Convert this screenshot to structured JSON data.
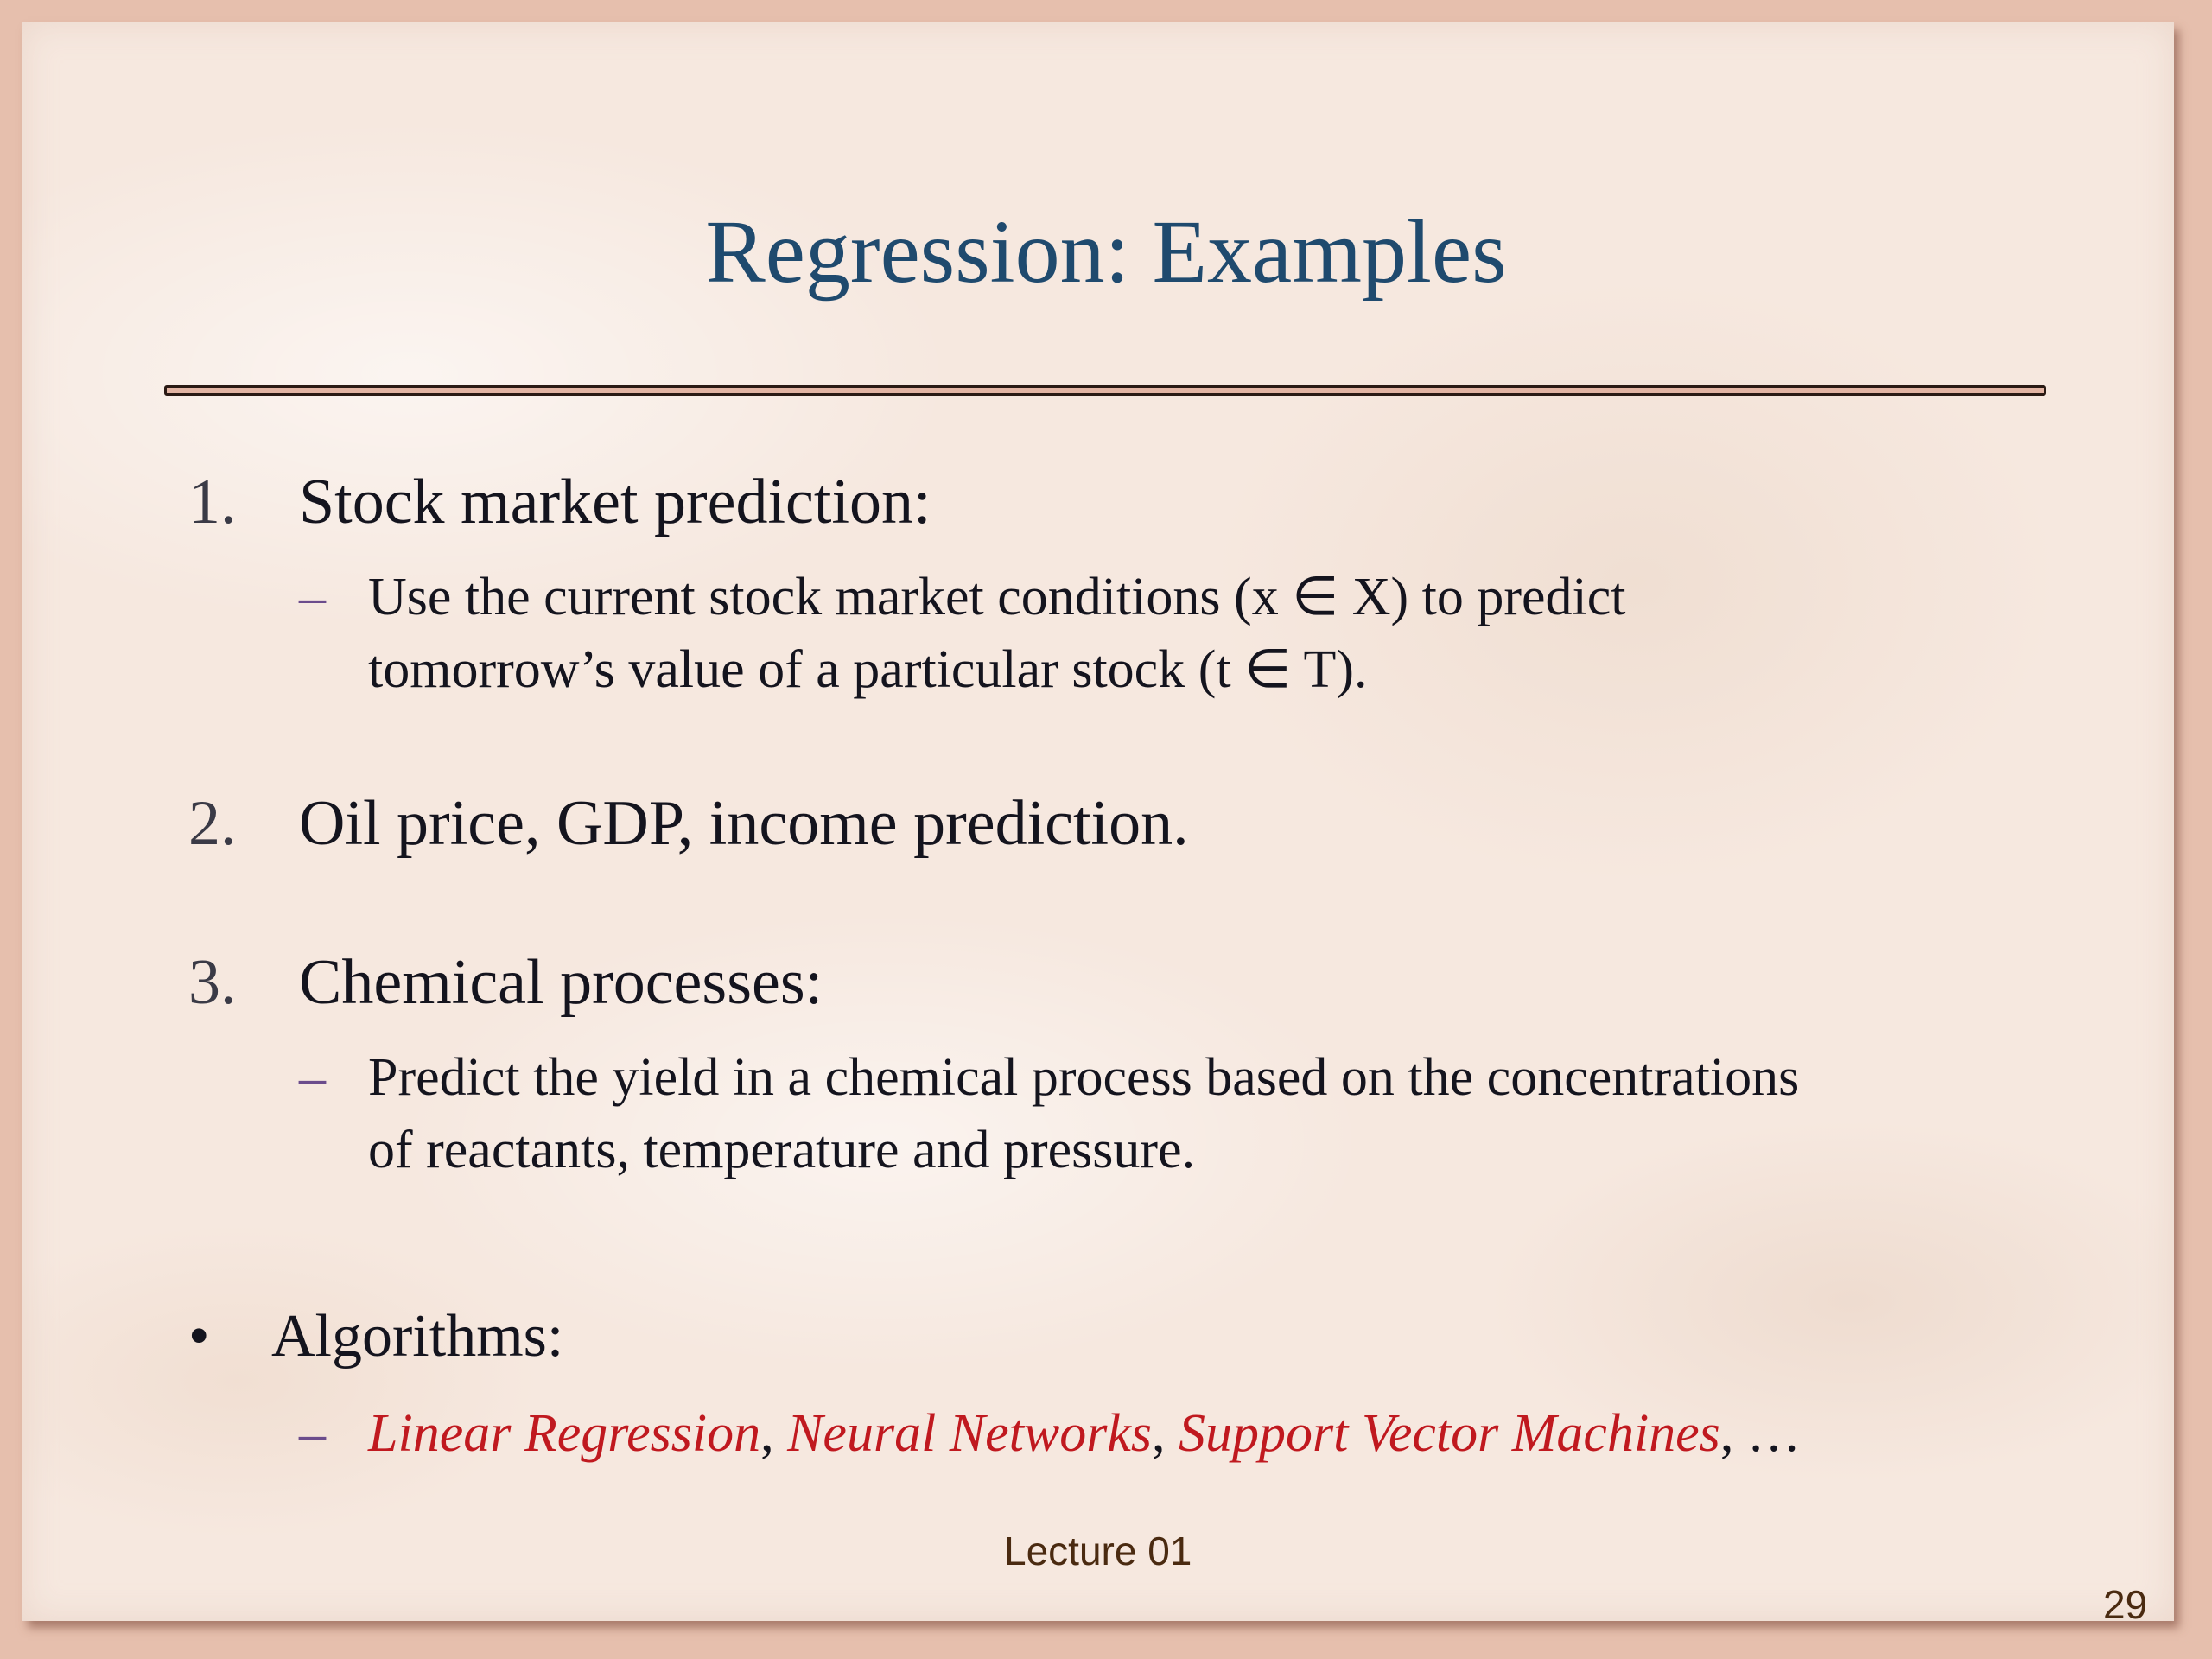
{
  "slide": {
    "title": "Regression: Examples",
    "items": [
      {
        "number": "1.",
        "text": "Stock market prediction:",
        "sub": {
          "dash": "–",
          "line1": "Use the current stock market conditions (x ∈ X) to predict",
          "line2": "tomorrow’s value of a particular stock (t ∈ T)."
        }
      },
      {
        "number": "2.",
        "text": "Oil price, GDP, income prediction."
      },
      {
        "number": "3.",
        "text": "Chemical processes:",
        "sub": {
          "dash": "–",
          "line1": "Predict the yield in a chemical process based on the concentrations",
          "line2": "of reactants, temperature and pressure."
        }
      }
    ],
    "bullet": {
      "symbol": "•",
      "text": "Algorithms:",
      "dash": "–",
      "algorithms": [
        "Linear Regression",
        "Neural Networks",
        "Support Vector Machines"
      ],
      "separator": ", ",
      "ellipsis": ", …"
    },
    "footer": "Lecture 01",
    "page_number": "29"
  },
  "colors": {
    "title": "#1f4a6e",
    "body": "#14141e",
    "dash": "#6b4c8c",
    "highlight": "#c0191f",
    "footer": "#4a2a10",
    "border": "#e6bfad",
    "background": "#f6e8df"
  }
}
